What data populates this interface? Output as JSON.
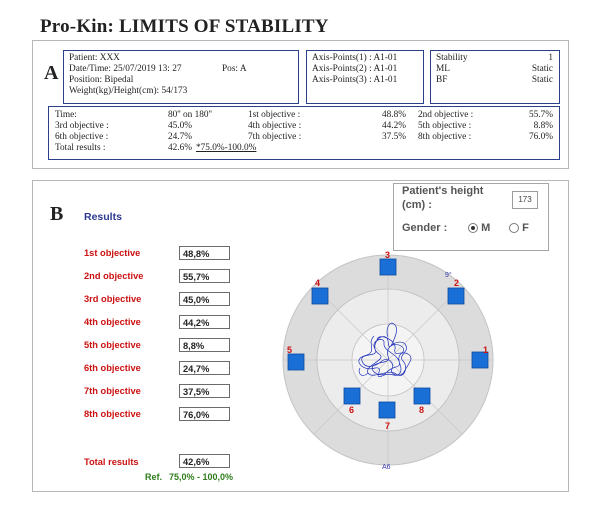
{
  "title": "Pro-Kin: LIMITS OF STABILITY",
  "panel_a": {
    "letter": "A",
    "patient_line": "Patient: XXX",
    "datetime_line": "Date/Time: 25/07/2019 13: 27",
    "pos_line": "Pos: A",
    "position_line": "Position: Bipedal",
    "weight_line": "Weight(kg)/Height(cm): 54/173",
    "axis1": "Axis-Points(1) : A1-01",
    "axis2": "Axis-Points(2) : A1-01",
    "axis3": "Axis-Points(3) : A1-01",
    "stability_label": "Stability",
    "stability_value": "1",
    "ml_label": "ML",
    "ml_value": "Static",
    "bf_label": "BF",
    "bf_value": "Static",
    "summary": {
      "time_label": "Time:",
      "time_value": "80'' on 180''",
      "o1_label": "1st objective :",
      "o1_value": "48.8%",
      "o2_label": "2nd objective :",
      "o2_value": "55.7%",
      "o3_label": "3rd objective :",
      "o3_value": "45.0%",
      "o4_label": "4th objective :",
      "o4_value": "44.2%",
      "o5_label": "5th objective :",
      "o5_value": "8.8%",
      "o6_label": "6th objective :",
      "o6_value": "24.7%",
      "o7_label": "7th objective :",
      "o7_value": "37.5%",
      "o8_label": "8th objective :",
      "o8_value": "76.0%",
      "total_label": "Total results :",
      "total_value": "42.6%",
      "total_ref": "*75.0%-100.0%"
    }
  },
  "panel_b": {
    "letter": "B",
    "results_heading": "Results",
    "height_label_1": "Patient's height",
    "height_label_2": "(cm) :",
    "height_value": "173",
    "gender_label": "Gender :",
    "gender_m": "M",
    "gender_f": "F",
    "objectives": [
      {
        "label": "1st objective",
        "value": "48,8%"
      },
      {
        "label": "2nd objective",
        "value": "55,7%"
      },
      {
        "label": "3rd objective",
        "value": "45,0%"
      },
      {
        "label": "4th objective",
        "value": "44,2%"
      },
      {
        "label": "5th objective",
        "value": "8,8%"
      },
      {
        "label": "6th objective",
        "value": "24,7%"
      },
      {
        "label": "7th objective",
        "value": "37,5%"
      },
      {
        "label": "8th objective",
        "value": "76,0%"
      }
    ],
    "total_label": "Total results",
    "total_value": "42,6%",
    "ref_label": "Ref.",
    "ref_value": "75,0% - 100,0%",
    "plot": {
      "top_angle_label": "9°",
      "bottom_label": "A6",
      "target_numbers": [
        "1",
        "2",
        "3",
        "4",
        "5",
        "6",
        "7",
        "8"
      ]
    }
  },
  "colors": {
    "target_blue": "#1a6fd6",
    "trace_blue": "#1e2fb8",
    "label_red": "#cc1111",
    "heading_blue": "#2b3a8f",
    "ref_green": "#2e7d1a"
  }
}
